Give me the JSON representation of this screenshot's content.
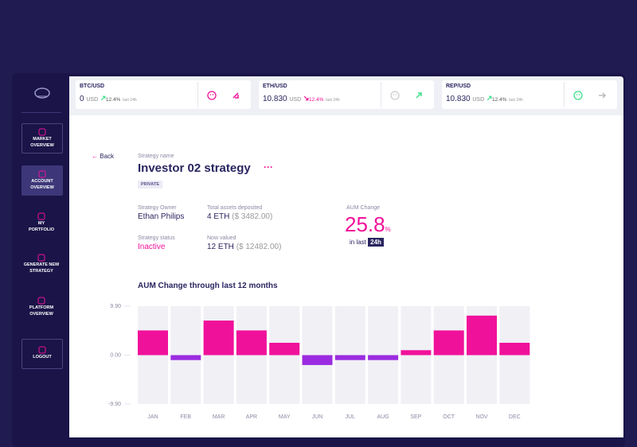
{
  "tickers": [
    {
      "pair": "BTC/USD",
      "value": "0",
      "unit": "USD",
      "change": "12.4%",
      "period": "last 24h"
    },
    {
      "pair": "ETH/USD",
      "value": "10.830",
      "unit": "USD",
      "change": "12.4%",
      "period": "last 24h"
    },
    {
      "pair": "REP/USD",
      "value": "10.830",
      "unit": "USD",
      "change": "12.4%",
      "period": "last 24h"
    }
  ],
  "nav": [
    {
      "label_lines": [
        "MARKET",
        "OVERVIEW"
      ]
    },
    {
      "label_lines": [
        "ACCOUNT",
        "OVERVIEW"
      ]
    },
    {
      "label_lines": [
        "MY",
        "PORTFOLIO"
      ]
    },
    {
      "label_lines": [
        "GENERATE NEW",
        "STRATEGY"
      ]
    },
    {
      "label_lines": [
        "PLATFORM",
        "OVERVIEW"
      ]
    },
    {
      "label_lines": [
        "LOGOUT"
      ]
    }
  ],
  "back": "Back",
  "strategy_name_label": "Strategy name",
  "strategy_name": "Investor 02 strategy",
  "badge": "PRIVATE",
  "owner_label": "Strategy Owner",
  "owner": "Ethan Philips",
  "deposited_label": "Total assets deposited",
  "deposited": "4 ETH",
  "deposited_usd": "($ 3482.00)",
  "status_label": "Strategy status",
  "status": "Inactive",
  "valued_label": "Now valued",
  "valued": "12 ETH",
  "valued_usd": "($ 12482.00)",
  "aum_label": "AUM Change",
  "aum_value": "25.8",
  "aum_unit": "%",
  "aum_period_label": "in last",
  "aum_period": "24h",
  "chart_data": {
    "type": "bar",
    "title": "AUM Change through last 12 months",
    "categories": [
      "JAN",
      "FEB",
      "MAR",
      "APR",
      "MAY",
      "JUN",
      "JUL",
      "AUG",
      "SEP",
      "OCT",
      "NOV",
      "DEC"
    ],
    "values": [
      5.0,
      -1.0,
      7.0,
      5.0,
      2.5,
      -2.0,
      -1.0,
      -1.0,
      1.0,
      5.0,
      8.0,
      2.5
    ],
    "positive_color": "#f0119a",
    "negative_color": "#9b2be0",
    "ylim": [
      -9.9,
      9.9
    ],
    "yticks": [
      {
        "value": 9.9,
        "label": "9.90"
      },
      {
        "value": 0,
        "label": "0.00"
      },
      {
        "value": -9.9,
        "label": "-9.90"
      }
    ]
  }
}
